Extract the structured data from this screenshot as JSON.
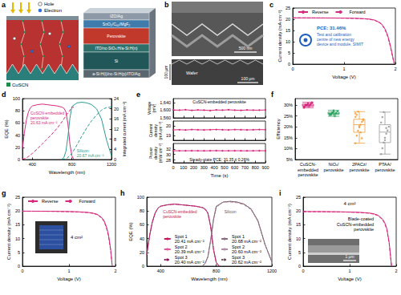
{
  "diagram": {
    "panel": "a",
    "hole": "Hole",
    "electron": "Electron",
    "cuscn": "CuSCN",
    "layers": [
      "IZO/Ag",
      "SnO₂/C₆₀/MgF₂",
      "Perovskite",
      "ITO/nc-SiOₓ:H/a-Si:H(n)",
      "Si",
      "a-Si:H(i)/nc-Si:H(p)/ITO/Ag"
    ]
  },
  "micrograph": {
    "panel": "b",
    "scale_bar_top": "500 nm",
    "label": "Wafer",
    "scale_bar_side": "100 µm",
    "scale_bar_bottom": "100 µm"
  },
  "chart_data": [
    {
      "panel": "c",
      "type": "line",
      "xlabel": "Voltage (V)",
      "ylabel": "Current density (mA cm⁻²)",
      "xlim": [
        0,
        2
      ],
      "xticks": [
        0,
        1,
        2
      ],
      "ylim": [
        0,
        25
      ],
      "yticks": [
        0,
        5,
        10,
        15,
        20,
        25
      ],
      "legend": "top",
      "annotations": [
        "PCE: 31.46%",
        "Test and calibration centre of new energy device and module, SIMIT"
      ],
      "x": [
        0,
        0.2,
        0.4,
        0.6,
        0.8,
        1.0,
        1.2,
        1.4,
        1.5,
        1.6,
        1.7,
        1.75,
        1.8,
        1.85,
        1.9,
        1.95,
        1.98
      ],
      "series": [
        {
          "name": "Reverse",
          "color": "#d6287d",
          "line_style": "solid",
          "values": [
            20.63,
            20.62,
            20.6,
            20.58,
            20.55,
            20.5,
            20.42,
            20.25,
            20.05,
            19.6,
            18.5,
            17.4,
            15.6,
            12.8,
            8.6,
            3.2,
            0
          ]
        },
        {
          "name": "Forward",
          "color": "#d6287d",
          "line_style": "dashed",
          "values": [
            20.6,
            20.59,
            20.57,
            20.55,
            20.52,
            20.46,
            20.37,
            20.18,
            19.95,
            19.45,
            18.3,
            17.1,
            15.2,
            12.3,
            8.0,
            2.6,
            0
          ]
        }
      ]
    },
    {
      "panel": "d",
      "type": "line",
      "xlabel": "Wavelength (nm)",
      "ylabel": "EQE (%)",
      "y2label": "Integrated current (mA cm⁻²)",
      "xlim": [
        300,
        1200
      ],
      "xticks": [
        400,
        800,
        1200
      ],
      "ylim": [
        0,
        100
      ],
      "yticks": [
        0,
        20,
        40,
        60,
        80,
        100
      ],
      "y2lim": [
        0,
        24
      ],
      "y2ticks": [
        0,
        4,
        8,
        12,
        16,
        20,
        24
      ],
      "annotations": [
        "20.63 mA cm⁻²",
        "20.67 mA cm⁻²"
      ],
      "series": [
        {
          "name": "CuSCN-embedded perovskite",
          "color": "#d6287d",
          "line_style": "solid",
          "x": [
            300,
            320,
            340,
            360,
            380,
            400,
            450,
            500,
            550,
            600,
            650,
            700,
            720,
            740,
            760,
            780,
            800,
            820
          ],
          "values": [
            18,
            45,
            65,
            78,
            85,
            88,
            90,
            91,
            90,
            89,
            88,
            86,
            84,
            78,
            58,
            25,
            6,
            0
          ]
        },
        {
          "name": "Silicon",
          "color": "#2a9d8f",
          "line_style": "solid",
          "x": [
            700,
            720,
            740,
            760,
            780,
            800,
            850,
            900,
            950,
            1000,
            1050,
            1100,
            1150,
            1200
          ],
          "values": [
            0,
            4,
            14,
            38,
            68,
            87,
            93,
            94,
            93,
            90,
            83,
            66,
            32,
            6
          ]
        },
        {
          "axis": "y2",
          "color": "#d6287d",
          "line_style": "dashed",
          "x": [
            300,
            350,
            400,
            450,
            500,
            550,
            600,
            650,
            700,
            750,
            800,
            820
          ],
          "values": [
            0,
            0.9,
            2.4,
            4.2,
            6.1,
            8.1,
            10.1,
            12.3,
            14.9,
            17.8,
            20.5,
            20.63
          ]
        },
        {
          "axis": "y2",
          "color": "#2a9d8f",
          "line_style": "dashed",
          "x": [
            700,
            750,
            800,
            850,
            900,
            950,
            1000,
            1050,
            1100,
            1150,
            1200
          ],
          "values": [
            0,
            0.5,
            2.4,
            5.7,
            9.2,
            12.5,
            15.3,
            17.6,
            19.5,
            20.5,
            20.67
          ]
        }
      ]
    },
    {
      "panel": "e",
      "type": "line",
      "ylabel": "Voltage (mV)",
      "tick_labels": "y",
      "xlim": [
        0,
        900
      ],
      "xticks": [
        0,
        100,
        200,
        300,
        400,
        500,
        600,
        700,
        800,
        900
      ],
      "ylim": [
        1560,
        1660
      ],
      "yticks": [
        {
          "value": 1560,
          "label": "1,560"
        },
        {
          "value": 1600,
          "label": "1,600"
        },
        {
          "value": 1640,
          "label": "1,640"
        }
      ],
      "annotations": [
        "CuSCN-embedded perovskite"
      ],
      "color": "#d6287d",
      "marker": "circle",
      "x": [
        0,
        60,
        120,
        180,
        240,
        300,
        360,
        420,
        480,
        540,
        600,
        660,
        720,
        780,
        840,
        900
      ],
      "values": [
        1601,
        1600,
        1602,
        1599,
        1601,
        1600,
        1598,
        1601,
        1600,
        1602,
        1600,
        1599,
        1601,
        1600,
        1600,
        1601
      ]
    },
    {
      "panel": "e",
      "type": "line",
      "ylabel": "Current density (mA cm⁻²)",
      "tick_labels": "y",
      "xlim": [
        0,
        900
      ],
      "xticks": [
        0,
        100,
        200,
        300,
        400,
        500,
        600,
        700,
        800,
        900
      ],
      "ylim": [
        18.5,
        20.5
      ],
      "yticks": [
        19,
        20
      ],
      "color": "#d6287d",
      "marker": "circle",
      "x": [
        0,
        60,
        120,
        180,
        240,
        300,
        360,
        420,
        480,
        540,
        600,
        660,
        720,
        780,
        840,
        900
      ],
      "values": [
        19.58,
        19.6,
        19.57,
        19.61,
        19.59,
        19.58,
        19.6,
        19.62,
        19.59,
        19.58,
        19.61,
        19.6,
        19.58,
        19.59,
        19.61,
        19.6
      ]
    },
    {
      "panel": "e",
      "type": "line",
      "xlabel": "Time (s)",
      "ylabel": "Power density (mW cm⁻²)",
      "xlim": [
        0,
        900
      ],
      "xticks": [
        0,
        100,
        200,
        300,
        400,
        500,
        600,
        700,
        800,
        900
      ],
      "ylim": [
        27,
        34
      ],
      "yticks": [
        28,
        30,
        32
      ],
      "annotations": [
        "Steady-state PCE: 31.35 ± 0.26%"
      ],
      "color": "#d6287d",
      "marker": "circle",
      "x": [
        0,
        60,
        120,
        180,
        240,
        300,
        360,
        420,
        480,
        540,
        600,
        660,
        720,
        780,
        840,
        900
      ],
      "values": [
        31.35,
        31.36,
        31.34,
        31.37,
        31.35,
        31.33,
        31.36,
        31.38,
        31.34,
        31.35,
        31.37,
        31.35,
        31.33,
        31.35,
        31.37,
        31.36
      ]
    },
    {
      "panel": "f",
      "type": "box",
      "ylabel": "Efficiency",
      "categories": [
        "CuSCN-embedded perovskite",
        "NiOₓ/perovskite",
        "2PACz/perovskite",
        "PTAA/perovskite"
      ],
      "colors": [
        "#d6287d",
        "#2ca25f",
        "#f39c34",
        "#9a9a9a"
      ],
      "ylim": [
        5,
        33
      ],
      "yticks": [
        {
          "value": 5,
          "label": "5%"
        },
        {
          "value": 10,
          "label": "10%"
        },
        {
          "value": 15,
          "label": "15%"
        },
        {
          "value": 20,
          "label": "20%"
        },
        {
          "value": 25,
          "label": "25%"
        },
        {
          "value": 30,
          "label": "30%"
        }
      ],
      "boxes": [
        {
          "min": 28.8,
          "q1": 29.5,
          "median": 30.0,
          "q3": 30.5,
          "max": 31.3
        },
        {
          "min": 24.9,
          "q1": 25.8,
          "median": 26.2,
          "q3": 26.8,
          "max": 27.6
        },
        {
          "min": 12.5,
          "q1": 17.5,
          "median": 21.0,
          "q3": 23.5,
          "max": 27.0
        },
        {
          "min": 7.5,
          "q1": 12.8,
          "median": 17.6,
          "q3": 21.0,
          "max": 26.8
        }
      ],
      "points": [
        [
          29.2,
          29.6,
          30.1,
          30.4,
          29.8,
          30.6,
          31.0,
          29.4,
          30.2,
          29.9,
          30.8,
          29.5,
          30.3,
          31.3,
          28.8
        ],
        [
          25.4,
          26.0,
          26.5,
          26.9,
          25.8,
          26.3,
          27.2,
          26.1,
          25.6,
          26.7,
          27.6,
          24.9
        ],
        [
          12.5,
          16.0,
          18.2,
          19.8,
          21.0,
          22.3,
          23.5,
          24.6,
          25.5,
          27.0,
          20.4,
          17.5,
          14.8,
          23.0,
          26.2
        ],
        [
          7.5,
          10.2,
          12.8,
          15.0,
          16.9,
          18.4,
          20.1,
          22.0,
          24.5,
          26.8,
          13.9,
          19.5
        ]
      ]
    },
    {
      "panel": "g",
      "type": "line",
      "xlabel": "Voltage (V)",
      "ylabel": "Current density (mA cm⁻²)",
      "xlim": [
        0,
        2
      ],
      "xticks": [
        0,
        1,
        2
      ],
      "ylim": [
        0,
        25
      ],
      "yticks": [
        0,
        5,
        10,
        15,
        20,
        25
      ],
      "legend": "top",
      "annotations": [
        "4 cm²"
      ],
      "x": [
        0,
        0.2,
        0.4,
        0.6,
        0.8,
        1.0,
        1.2,
        1.4,
        1.5,
        1.6,
        1.7,
        1.75,
        1.8,
        1.85,
        1.9,
        1.93
      ],
      "series": [
        {
          "name": "Reverse",
          "color": "#d6287d",
          "line_style": "solid",
          "values": [
            19.95,
            19.94,
            19.92,
            19.9,
            19.86,
            19.8,
            19.7,
            19.5,
            19.28,
            18.85,
            17.7,
            16.6,
            14.6,
            11.4,
            5.6,
            0
          ]
        },
        {
          "name": "Forward",
          "color": "#d6287d",
          "line_style": "dashed",
          "values": [
            19.92,
            19.91,
            19.89,
            19.86,
            19.82,
            19.75,
            19.64,
            19.42,
            19.18,
            18.7,
            17.5,
            16.3,
            14.2,
            10.9,
            5.0,
            0
          ]
        }
      ]
    },
    {
      "panel": "h",
      "type": "line",
      "xlabel": "Wavelength (nm)",
      "ylabel": "EQE (%)",
      "xlim": [
        300,
        1200
      ],
      "xticks": [
        400,
        800,
        1200
      ],
      "ylim": [
        0,
        100
      ],
      "yticks": [
        0,
        20,
        40,
        60,
        80,
        100
      ],
      "legend": "bottom",
      "annotations": [
        "CuSCN-embedded perovskite",
        "Silicon"
      ],
      "series": [
        {
          "name": "Spot 1 20.41 mA cm⁻²",
          "color": "#c2185b",
          "line_style": "solid",
          "x": [
            300,
            320,
            340,
            360,
            380,
            400,
            450,
            500,
            550,
            600,
            650,
            700,
            720,
            740,
            760,
            780,
            800,
            820
          ],
          "values": [
            17,
            44,
            64,
            77,
            84,
            87,
            89,
            90,
            89,
            88,
            87,
            85,
            83,
            77,
            57,
            24,
            5,
            0
          ]
        },
        {
          "name": "Spot 2 20.39 mA cm⁻²",
          "color": "#e0569a",
          "line_style": "dashed",
          "x": [
            300,
            320,
            340,
            360,
            380,
            400,
            450,
            500,
            550,
            600,
            650,
            700,
            720,
            740,
            760,
            780,
            800,
            820
          ],
          "values": [
            16,
            43,
            63,
            76,
            84,
            87,
            89,
            90,
            89,
            88,
            87,
            85,
            83,
            76,
            56,
            24,
            5,
            0
          ]
        },
        {
          "name": "Spot 3 20.40 mA cm⁻²",
          "color": "#8e1457",
          "line_style": "dotted",
          "x": [
            300,
            320,
            340,
            360,
            380,
            400,
            450,
            500,
            550,
            600,
            650,
            700,
            720,
            740,
            760,
            780,
            800,
            820
          ],
          "values": [
            17,
            44,
            64,
            77,
            84,
            87,
            89,
            90,
            89,
            88,
            87,
            85,
            82,
            77,
            57,
            25,
            6,
            0
          ]
        },
        {
          "name": "Spot 1 20.68 mA cm⁻²",
          "color": "#8c6d7f",
          "line_style": "solid",
          "x": [
            700,
            720,
            740,
            760,
            780,
            800,
            850,
            900,
            950,
            1000,
            1050,
            1100,
            1150,
            1200
          ],
          "values": [
            0,
            4,
            14,
            38,
            68,
            87,
            93,
            94,
            93,
            90,
            83,
            66,
            32,
            6
          ]
        },
        {
          "name": "Spot 2 20.60 mA cm⁻²",
          "color": "#b08fa3",
          "line_style": "dashed",
          "x": [
            700,
            720,
            740,
            760,
            780,
            800,
            850,
            900,
            950,
            1000,
            1050,
            1100,
            1150,
            1200
          ],
          "values": [
            0,
            4,
            13,
            37,
            67,
            86,
            93,
            93,
            92,
            89,
            82,
            65,
            31,
            6
          ]
        },
        {
          "name": "Spot 3 20.62 mA cm⁻²",
          "color": "#6e5262",
          "line_style": "dotted",
          "x": [
            700,
            720,
            740,
            760,
            780,
            800,
            850,
            900,
            950,
            1000,
            1050,
            1100,
            1150,
            1200
          ],
          "values": [
            0,
            4,
            14,
            38,
            67,
            86,
            93,
            94,
            93,
            90,
            83,
            65,
            32,
            6
          ]
        }
      ]
    },
    {
      "panel": "i",
      "type": "line",
      "xlabel": "Voltage (V)",
      "ylabel": "Current density (mA cm⁻²)",
      "xlim": [
        0,
        2
      ],
      "xticks": [
        0,
        1,
        2
      ],
      "ylim": [
        0,
        25
      ],
      "yticks": [
        0,
        5,
        10,
        15,
        20,
        25
      ],
      "annotations": [
        "Blade-coated CuSCN-embedded perovskite",
        "4 cm²",
        "1 µm"
      ],
      "x": [
        0,
        0.2,
        0.4,
        0.6,
        0.8,
        1.0,
        1.2,
        1.4,
        1.5,
        1.6,
        1.7,
        1.75,
        1.8,
        1.85,
        1.9
      ],
      "series": [
        {
          "color": "#d6287d",
          "line_style": "solid",
          "values": [
            19.8,
            19.79,
            19.77,
            19.74,
            19.7,
            19.63,
            19.52,
            19.3,
            19.05,
            18.55,
            17.2,
            15.9,
            13.6,
            8.5,
            0
          ]
        },
        {
          "color": "#d6287d",
          "line_style": "dashed",
          "values": [
            19.76,
            19.75,
            19.73,
            19.7,
            19.65,
            19.57,
            19.45,
            19.2,
            18.92,
            18.38,
            16.95,
            15.6,
            13.2,
            8.0,
            0
          ]
        }
      ]
    }
  ]
}
